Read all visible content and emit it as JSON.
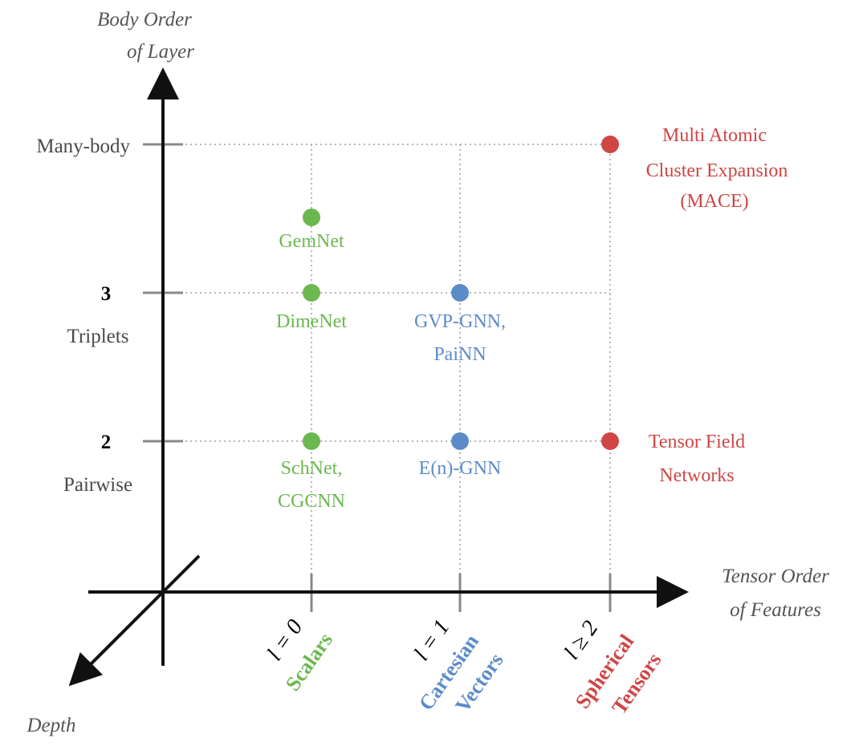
{
  "axes": {
    "y_title_line1": "Body Order",
    "y_title_line2": "of Layer",
    "x_title_line1": "Tensor Order",
    "x_title_line2": "of Features",
    "depth_title": "Depth"
  },
  "y_ticks": {
    "many_body": "Many-body",
    "three_num": "3",
    "three_name": "Triplets",
    "two_num": "2",
    "two_name": "Pairwise"
  },
  "x_ticks": {
    "l0_math": "l = 0",
    "l0_name": "Scalars",
    "l1_math": "l = 1",
    "l1_name_line1": "Cartesian",
    "l1_name_line2": "Vectors",
    "l2_math": "l ≥ 2",
    "l2_name_line1": "Spherical",
    "l2_name_line2": "Tensors"
  },
  "points": {
    "gemnet": "GemNet",
    "dimenet": "DimeNet",
    "schnet_line1": "SchNet,",
    "schnet_line2": "CGCNN",
    "gvp_line1": "GVP-GNN,",
    "gvp_line2": "PaiNN",
    "egnn": "E(n)-GNN",
    "mace_line1": "Multi Atomic",
    "mace_line2": "Cluster Expansion",
    "mace_line3": "(MACE)",
    "tfn_line1": "Tensor Field",
    "tfn_line2": "Networks"
  },
  "colors": {
    "scalars_green": "#6ab84f",
    "vectors_blue": "#5b8cc8",
    "tensors_red": "#d04545",
    "axis": "#111111",
    "guide": "#b5b5b5"
  }
}
